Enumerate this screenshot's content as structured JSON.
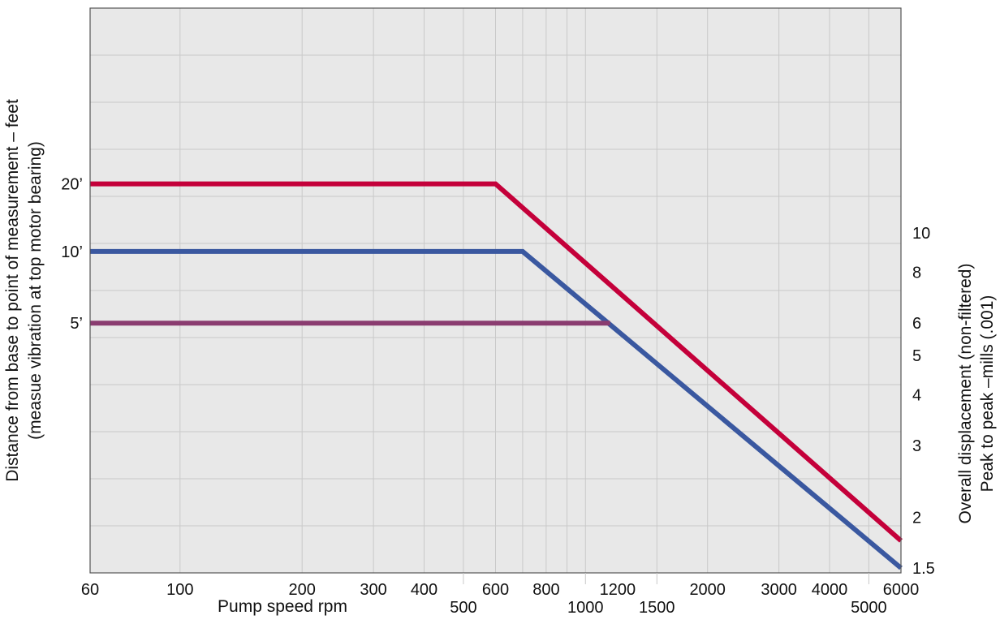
{
  "chart_data": {
    "type": "line",
    "xscale": "log",
    "xlim": [
      60,
      6000
    ],
    "xlabel": "Pump speed rpm",
    "x_ticks_top_row": [
      "60",
      "100",
      "200",
      "300",
      "400",
      "600",
      "800",
      "1200",
      "2000",
      "3000",
      "4000",
      "6000"
    ],
    "x_ticks_bottom_row": [
      "500",
      "1000",
      "1500",
      "5000"
    ],
    "left_ylabel_line1": "Distance from base to point of measurement – feet",
    "left_ylabel_line2": "(measue vibration at top motor bearing)",
    "left_ticks": [
      "20’",
      "10’",
      "5’"
    ],
    "right_yscale": "log",
    "right_ylim": [
      1.5,
      20
    ],
    "right_ylabel_line1": "Overall displacement (non-filtered)",
    "right_ylabel_line2": "Peak to peak –mills (.001)",
    "right_ticks": [
      10,
      8,
      6,
      5,
      4,
      3,
      2,
      1.5
    ],
    "right_tick_labels": [
      "10",
      "8",
      "6",
      "5",
      "4",
      "3",
      "2",
      "1.5"
    ],
    "grid": true,
    "series": [
      {
        "name": "20’",
        "color": "#c4003a",
        "points": [
          [
            60,
            13.2
          ],
          [
            600,
            13.2
          ],
          [
            6000,
            1.75
          ]
        ]
      },
      {
        "name": "10’",
        "color": "#3a58a0",
        "points": [
          [
            60,
            9.0
          ],
          [
            700,
            9.0
          ],
          [
            6000,
            1.5
          ]
        ]
      },
      {
        "name": "5’",
        "color": "#8a3c70",
        "points": [
          [
            60,
            6.0
          ],
          [
            1150,
            6.0
          ]
        ]
      }
    ]
  }
}
